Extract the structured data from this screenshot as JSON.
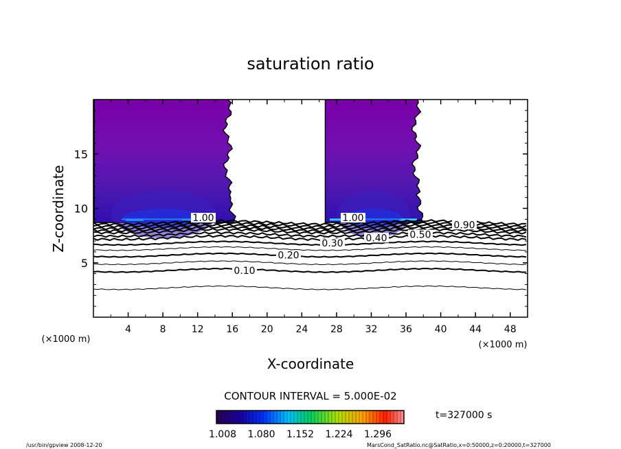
{
  "chart_data": {
    "type": "heatmap",
    "title": "saturation ratio",
    "xlabel": "X-coordinate",
    "ylabel": "Z-coordinate",
    "x_unit_left": "(×1000 m)",
    "x_unit_right": "(×1000 m)",
    "xlim": [
      0,
      50
    ],
    "ylim": [
      0,
      20
    ],
    "xticks": [
      4,
      8,
      12,
      16,
      20,
      24,
      28,
      32,
      36,
      40,
      44,
      48
    ],
    "yticks": [
      5,
      10,
      15
    ],
    "contour_interval_label": "CONTOUR INTERVAL = 5.000E-02",
    "time_label": "t=327000 s",
    "colorbar_ticks": [
      "1.008",
      "1.080",
      "1.152",
      "1.224",
      "1.296"
    ],
    "colorbar_range": [
      1.008,
      1.32
    ],
    "supersaturated_regions": [
      {
        "x_start": 0.1,
        "x_end": 16.1,
        "z_base": 8.7,
        "z_top": 20,
        "max_ratio_x": [
          4.5,
          11
        ],
        "peak_z": 9.0
      },
      {
        "x_start": 26.7,
        "x_end": 37.8,
        "z_base": 8.7,
        "z_top": 20,
        "max_ratio_x": [
          28,
          36
        ],
        "peak_z": 9.0
      }
    ],
    "contour_levels": [
      {
        "level": 0.05,
        "z": 2.7
      },
      {
        "level": 0.1,
        "z": 4.3,
        "label": "0.10"
      },
      {
        "level": 0.15,
        "z": 5.0
      },
      {
        "level": 0.2,
        "z": 5.7,
        "label": "0.20"
      },
      {
        "level": 0.25,
        "z": 6.3
      },
      {
        "level": 0.3,
        "z": 6.8,
        "label": "0.30"
      },
      {
        "level": 0.4,
        "z": 7.3,
        "label": "0.40"
      },
      {
        "level": 0.5,
        "z": 7.6,
        "label": "0.50"
      },
      {
        "level": 0.6,
        "z": 7.9
      },
      {
        "level": 0.7,
        "z": 8.1
      },
      {
        "level": 0.8,
        "z": 8.3
      },
      {
        "level": 0.9,
        "z": 8.5,
        "label": "0.90"
      },
      {
        "level": 1.0,
        "z": 8.7,
        "label": "1.00"
      }
    ],
    "grid": false
  },
  "footer": {
    "program": "/usr/bin/gpview   2008-12-20",
    "source": "MarsCond_SatRatio.nc@SatRatio,x=0:50000,z=0:20000,t=327000"
  }
}
